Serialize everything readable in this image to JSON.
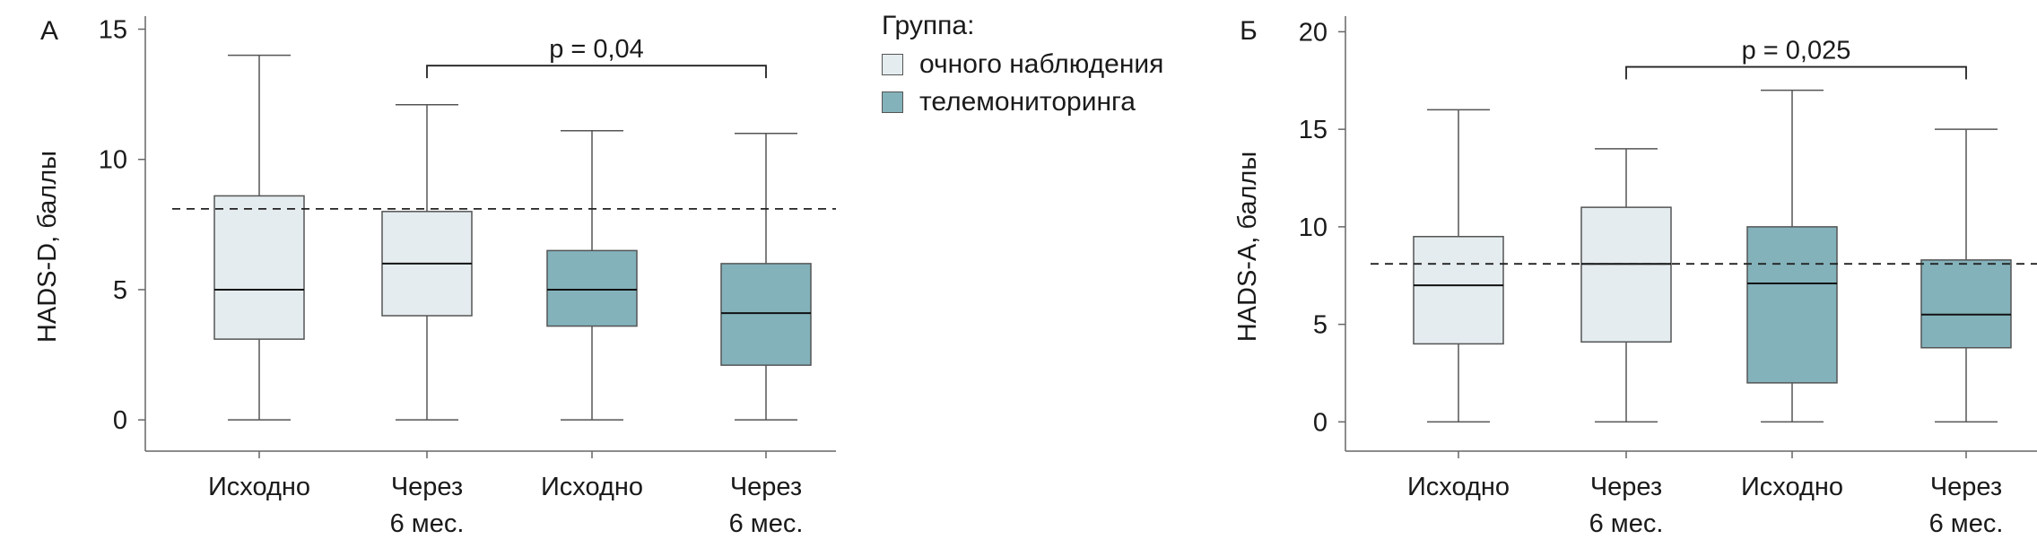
{
  "colors": {
    "group_visit": "#e4ecef",
    "group_tele": "#83b2bb",
    "stroke": "#555555"
  },
  "legend": {
    "title": "Группа:",
    "items": [
      {
        "label": "очного наблюдения",
        "color": "#e4ecef"
      },
      {
        "label": "телемониторинга",
        "color": "#83b2bb"
      }
    ]
  },
  "chart_data": [
    {
      "type": "box",
      "panel_label": "А",
      "ylabel": "HADS-D, баллы",
      "ylim": [
        -1.2,
        15.5
      ],
      "yticks": [
        0,
        5,
        10,
        15
      ],
      "categories": [
        {
          "line1": "Исходно",
          "line2": ""
        },
        {
          "line1": "Через",
          "line2": "6 мес."
        },
        {
          "line1": "Исходно",
          "line2": ""
        },
        {
          "line1": "Через",
          "line2": "6 мес."
        }
      ],
      "boxes": [
        {
          "group": "очного наблюдения",
          "min": 0,
          "q1": 3.1,
          "median": 5,
          "q3": 8.6,
          "max": 14
        },
        {
          "group": "очного наблюдения",
          "min": 0,
          "q1": 4,
          "median": 6,
          "q3": 8,
          "max": 12.1
        },
        {
          "group": "телемониторинга",
          "min": 0,
          "q1": 3.6,
          "median": 5,
          "q3": 6.5,
          "max": 11.1
        },
        {
          "group": "телемониторинга",
          "min": 0,
          "q1": 2.1,
          "median": 4.1,
          "q3": 6,
          "max": 11
        }
      ],
      "reference_line": 8.1,
      "annotation": {
        "text": "p = 0,04",
        "from": 1,
        "to": 3,
        "y": 13.6
      }
    },
    {
      "type": "box",
      "panel_label": "Б",
      "ylabel": "HADS-A, баллы",
      "ylim": [
        -1.5,
        20.8
      ],
      "yticks": [
        0,
        5,
        10,
        15,
        20
      ],
      "categories": [
        {
          "line1": "Исходно",
          "line2": ""
        },
        {
          "line1": "Через",
          "line2": "6 мес."
        },
        {
          "line1": "Исходно",
          "line2": ""
        },
        {
          "line1": "Через",
          "line2": "6 мес."
        }
      ],
      "boxes": [
        {
          "group": "очного наблюдения",
          "min": 0,
          "q1": 4,
          "median": 7,
          "q3": 9.5,
          "max": 16
        },
        {
          "group": "очного наблюдения",
          "min": 0,
          "q1": 4.1,
          "median": 8.1,
          "q3": 11,
          "max": 14
        },
        {
          "group": "телемониторинга",
          "min": 0,
          "q1": 2,
          "median": 7.1,
          "q3": 10,
          "max": 17
        },
        {
          "group": "телемониторинга",
          "min": 0,
          "q1": 3.8,
          "median": 5.5,
          "q3": 8.3,
          "max": 15
        }
      ],
      "reference_line": 8.1,
      "annotation": {
        "text": "p = 0,025",
        "from": 1,
        "to": 3,
        "y": 18.2
      }
    }
  ]
}
